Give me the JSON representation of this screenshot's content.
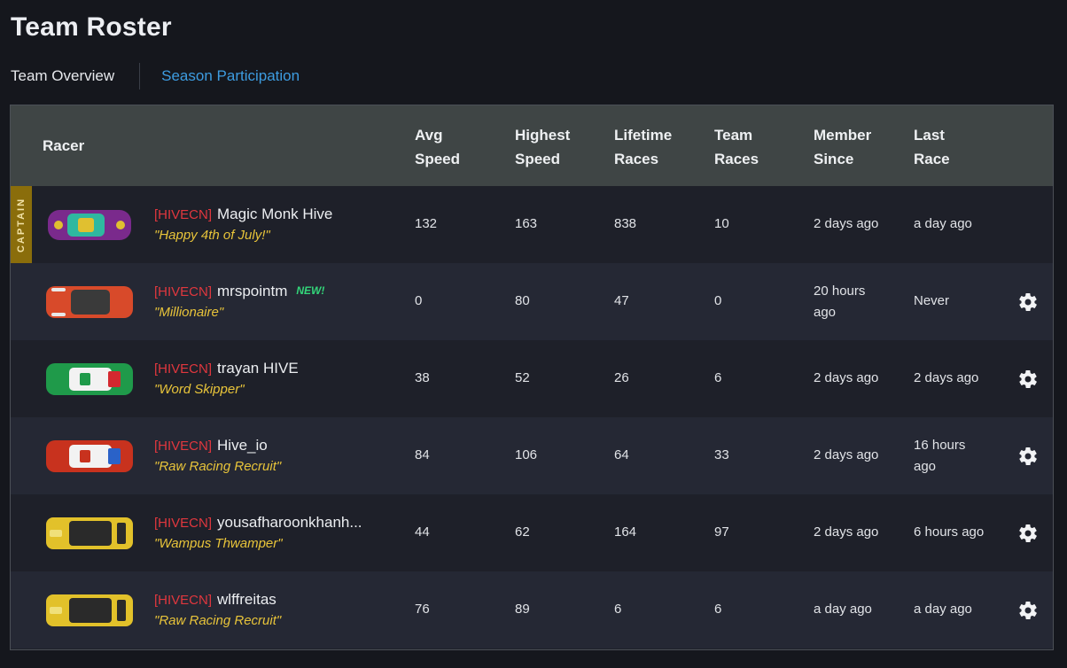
{
  "page": {
    "title": "Team Roster"
  },
  "tabs": [
    {
      "label": "Team Overview",
      "active": true
    },
    {
      "label": "Season Participation",
      "active": false
    }
  ],
  "table": {
    "columns": {
      "racer": "Racer",
      "avg_speed": [
        "Avg",
        "Speed"
      ],
      "highest_speed": [
        "Highest",
        "Speed"
      ],
      "lifetime_races": [
        "Lifetime",
        "Races"
      ],
      "team_races": [
        "Team",
        "Races"
      ],
      "member_since": [
        "Member",
        "Since"
      ],
      "last_race": [
        "Last",
        "Race"
      ]
    },
    "rows": [
      {
        "captain_label": "CAPTAIN",
        "tag": "[HIVECN]",
        "name": "Magic Monk Hive",
        "motto": "\"Happy 4th of July!\"",
        "avg_speed": "132",
        "highest_speed": "163",
        "lifetime_races": "838",
        "team_races": "10",
        "member_since": "2 days ago",
        "last_race": "a day ago",
        "car": {
          "body": "#7a2a8c",
          "accent": "#2fb8a0",
          "trim": "#e0c030"
        }
      },
      {
        "tag": "[HIVECN]",
        "name": "mrspointm",
        "new_badge": "NEW!",
        "motto": "\"Millionaire\"",
        "avg_speed": "0",
        "highest_speed": "80",
        "lifetime_races": "47",
        "team_races": "0",
        "member_since": [
          "20 hours",
          "ago"
        ],
        "last_race": "Never",
        "car": {
          "body": "#d84a2a",
          "accent": "#3a3a3a",
          "trim": "#e8e8e8"
        }
      },
      {
        "tag": "[HIVECN]",
        "name": "trayan HIVE",
        "motto": "\"Word Skipper\"",
        "avg_speed": "38",
        "highest_speed": "52",
        "lifetime_races": "26",
        "team_races": "6",
        "member_since": "2 days ago",
        "last_race": "2 days ago",
        "car": {
          "body": "#1f9a4a",
          "accent": "#f2f2f2",
          "trim": "#d4282f"
        }
      },
      {
        "tag": "[HIVECN]",
        "name": "Hive_io",
        "motto": "\"Raw Racing Recruit\"",
        "avg_speed": "84",
        "highest_speed": "106",
        "lifetime_races": "64",
        "team_races": "33",
        "member_since": "2 days ago",
        "last_race": [
          "16 hours",
          "ago"
        ],
        "car": {
          "body": "#c8321e",
          "accent": "#f2f2f2",
          "trim": "#2a62c8"
        }
      },
      {
        "tag": "[HIVECN]",
        "name": "yousafharoonkhanh...",
        "motto": "\"Wampus Thwamper\"",
        "avg_speed": "44",
        "highest_speed": "62",
        "lifetime_races": "164",
        "team_races": "97",
        "member_since": "2 days ago",
        "last_race": "6 hours ago",
        "car": {
          "body": "#e2c12a",
          "accent": "#2a2a2a",
          "trim": "#f0e07a"
        }
      },
      {
        "tag": "[HIVECN]",
        "name": "wlffreitas",
        "motto": "\"Raw Racing Recruit\"",
        "avg_speed": "76",
        "highest_speed": "89",
        "lifetime_races": "6",
        "team_races": "6",
        "member_since": "a day ago",
        "last_race": "a day ago",
        "car": {
          "body": "#e2c12a",
          "accent": "#2a2a2a",
          "trim": "#f0e07a"
        }
      }
    ]
  },
  "colors": {
    "team_tag": "#e0373e",
    "motto": "#e8c43a",
    "new_badge": "#33d67a",
    "link": "#3d9ce0",
    "captain": "#8a6d0b"
  }
}
